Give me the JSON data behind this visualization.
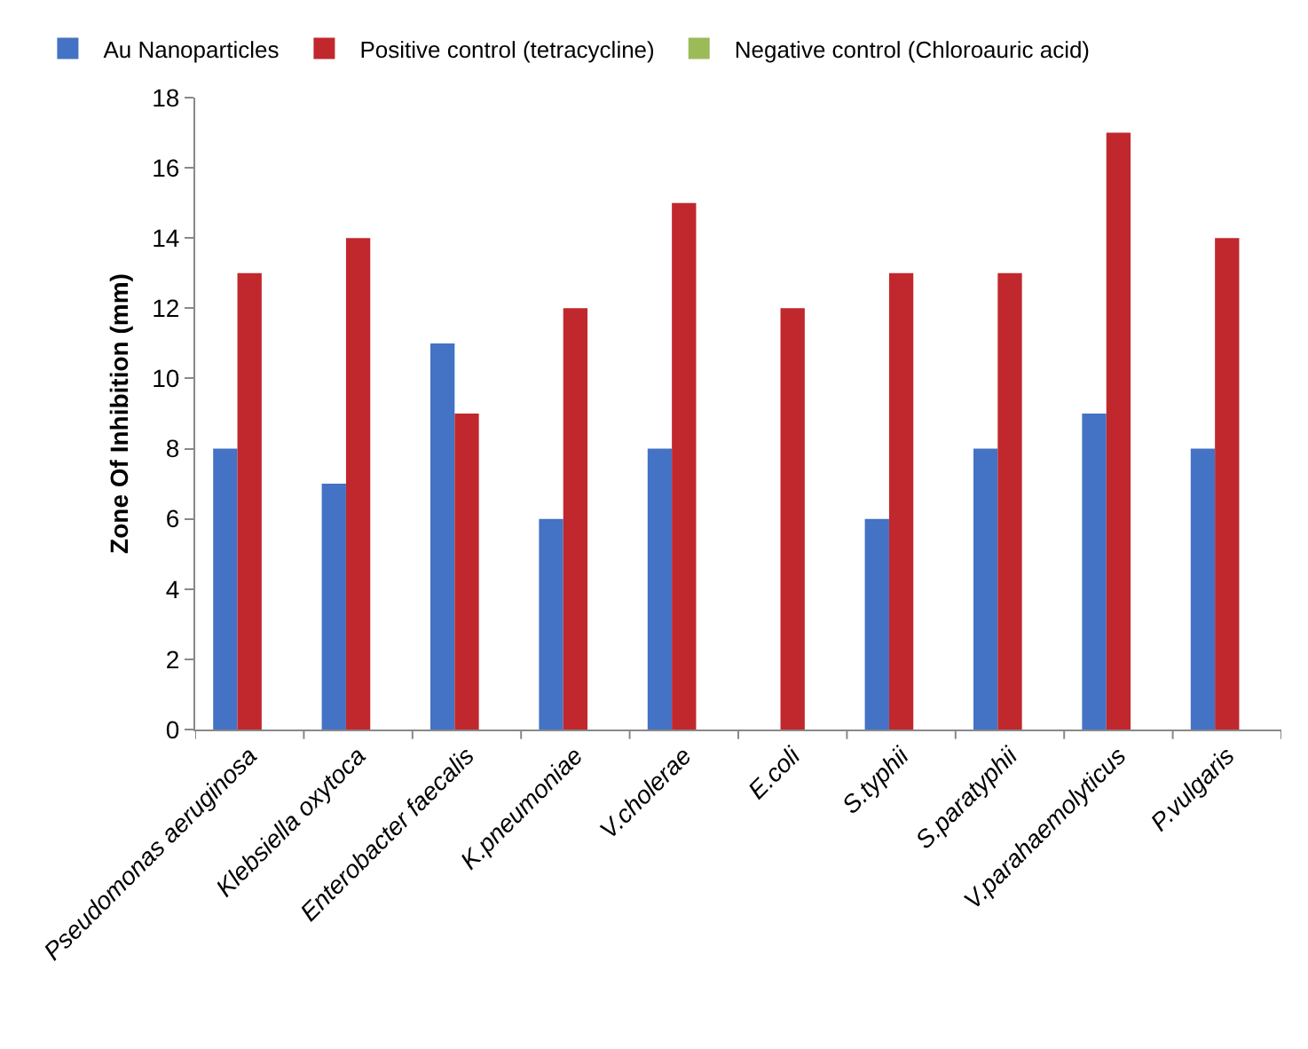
{
  "chart_data": {
    "type": "bar",
    "ylabel": "Zone Of Inhibition (mm)",
    "categories": [
      "Pseudomonas aeruginosa",
      "Klebsiella oxytoca",
      "Enterobacter faecalis",
      "K.pneumoniae",
      "V.cholerae",
      "E.coli",
      "S.typhii",
      "S.paratyphii",
      "V.parahaemolyticus",
      "P.vulgaris"
    ],
    "series": [
      {
        "name": "Au Nanoparticles",
        "color": "#4472c4",
        "values": [
          8,
          7,
          11,
          6,
          8,
          0,
          6,
          8,
          9,
          8
        ]
      },
      {
        "name": "Positive control (tetracycline)",
        "color": "#c0282d",
        "values": [
          13,
          14,
          9,
          12,
          15,
          12,
          13,
          13,
          17,
          14
        ]
      },
      {
        "name": "Negative control (Chloroauric acid)",
        "color": "#9bbb59",
        "values": [
          0,
          0,
          0,
          0,
          0,
          0,
          0,
          0,
          0,
          0
        ]
      }
    ],
    "ylim": [
      0,
      18
    ],
    "yticks": [
      0,
      2,
      4,
      6,
      8,
      10,
      12,
      14,
      16,
      18
    ],
    "grid": false,
    "legend": "top left"
  }
}
